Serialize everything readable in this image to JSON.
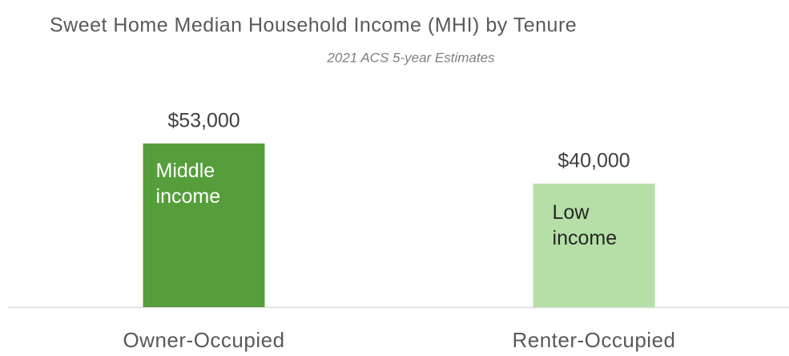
{
  "chart_data": {
    "type": "bar",
    "title": "Sweet Home Median Household Income (MHI) by Tenure",
    "subtitle": "2021 ACS 5-year Estimates",
    "categories": [
      "Owner-Occupied",
      "Renter-Occupied"
    ],
    "values": [
      53000,
      40000
    ],
    "value_labels": [
      "$53,000",
      "$40,000"
    ],
    "colors": [
      "#559e3b",
      "#b5dfa6"
    ],
    "annotations": [
      "Middle income",
      "Low income"
    ],
    "ylim": [
      0,
      60000
    ]
  }
}
